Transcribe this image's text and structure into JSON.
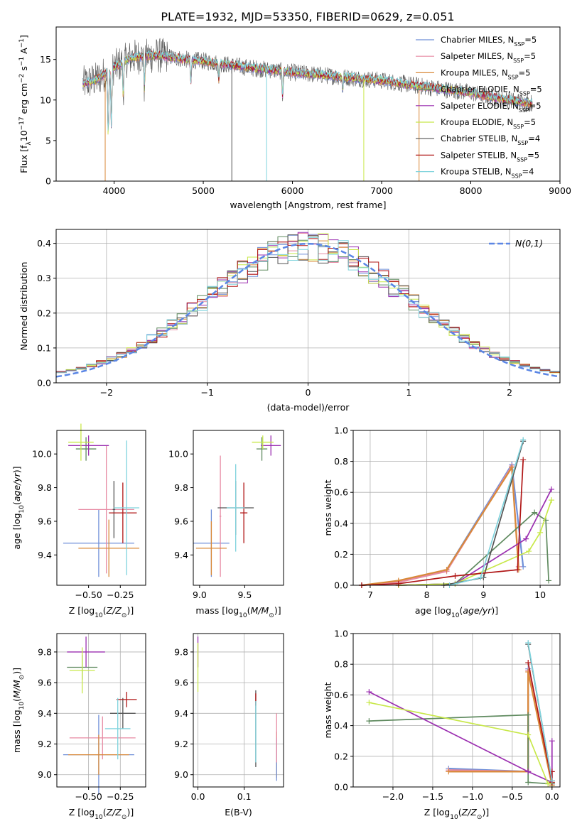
{
  "title": "PLATE=1932, MJD=53350, FIBERID=0629, z=0.051",
  "colors": {
    "Chabrier MILES": "#6f8fd8",
    "Salpeter MILES": "#e78aa3",
    "Kroupa MILES": "#d98a3a",
    "Chabrier ELODIE": "#5f8a5f",
    "Salpeter ELODIE": "#9b2fb0",
    "Kroupa ELODIE": "#c8e84a",
    "Chabrier STELIB": "#555555",
    "Salpeter STELIB": "#b01616",
    "Kroupa STELIB": "#7fd3dd",
    "gaussian": "#5b86e5"
  },
  "chart_data": [
    {
      "type": "line",
      "xlabel": "wavelength [Angstrom, rest frame]",
      "ylabel": "Flux [f_λ 10^-17 erg cm^-2 s^-1 A^-1]",
      "xlim": [
        3350,
        9000
      ],
      "ylim": [
        0,
        19
      ],
      "xticks": [
        "4000",
        "5000",
        "6000",
        "7000",
        "8000",
        "9000"
      ],
      "yticks": [
        "0",
        "5",
        "10",
        "15"
      ],
      "grid": false,
      "legend_position": "top-right",
      "legend": [
        {
          "name": "Chabrier MILES",
          "nssp": "5"
        },
        {
          "name": "Salpeter MILES",
          "nssp": "5"
        },
        {
          "name": "Kroupa MILES",
          "nssp": "5"
        },
        {
          "name": "Chabrier ELODIE",
          "nssp": "5"
        },
        {
          "name": "Salpeter ELODIE",
          "nssp": "5"
        },
        {
          "name": "Kroupa ELODIE",
          "nssp": "5"
        },
        {
          "name": "Chabrier STELIB",
          "nssp": "4"
        },
        {
          "name": "Salpeter STELIB",
          "nssp": "5"
        },
        {
          "name": "Kroupa STELIB",
          "nssp": "4"
        }
      ],
      "continuum_knots": [
        [
          3650,
          12.0
        ],
        [
          3800,
          12.5
        ],
        [
          4000,
          14.0
        ],
        [
          4200,
          15.3
        ],
        [
          4500,
          15.5
        ],
        [
          4800,
          15.0
        ],
        [
          5000,
          14.8
        ],
        [
          5500,
          14.0
        ],
        [
          6000,
          13.4
        ],
        [
          6500,
          12.9
        ],
        [
          7000,
          12.4
        ],
        [
          7500,
          11.6
        ],
        [
          8000,
          10.9
        ],
        [
          8300,
          10.2
        ],
        [
          8600,
          9.7
        ],
        [
          8700,
          9.6
        ]
      ]
    },
    {
      "type": "histogram",
      "xlabel": "(data-model)/error",
      "ylabel": "Normed distribution",
      "xlim": [
        -2.5,
        2.5
      ],
      "ylim": [
        0,
        0.44
      ],
      "xticks": [
        "−2",
        "−1",
        "0",
        "1",
        "2"
      ],
      "yticks": [
        "0.0",
        "0.1",
        "0.2",
        "0.3",
        "0.4"
      ],
      "grid": true,
      "legend_position": "top-right",
      "legend": "N(0,1)",
      "bin_width": 0.1
    },
    {
      "type": "errorbar",
      "xlabel": "Z [log10(Z/Z⊙)]",
      "ylabel": "age [log10(age/yr)]",
      "xlim": [
        -0.75,
        -0.05
      ],
      "ylim": [
        9.22,
        10.14
      ],
      "xticks": [
        "−0.50",
        "−0.25"
      ],
      "yticks": [
        "9.4",
        "9.6",
        "9.8",
        "10.0"
      ],
      "points": [
        {
          "model": "Chabrier MILES",
          "x": -0.42,
          "xerr": 0.28,
          "y": 9.47,
          "yerr": 0.2
        },
        {
          "model": "Salpeter MILES",
          "x": -0.36,
          "xerr": 0.22,
          "y": 9.67,
          "yerr": 0.38
        },
        {
          "model": "Kroupa MILES",
          "x": -0.34,
          "xerr": 0.24,
          "y": 9.44,
          "yerr": 0.17
        },
        {
          "model": "Chabrier ELODIE",
          "x": -0.52,
          "xerr": 0.08,
          "y": 10.03,
          "yerr": 0.07
        },
        {
          "model": "Salpeter ELODIE",
          "x": -0.5,
          "xerr": 0.16,
          "y": 10.05,
          "yerr": 0.06
        },
        {
          "model": "Kroupa ELODIE",
          "x": -0.56,
          "xerr": 0.1,
          "y": 10.07,
          "yerr": 0.11
        },
        {
          "model": "Chabrier STELIB",
          "x": -0.3,
          "xerr": 0.01,
          "y": 9.67,
          "yerr": 0.17
        },
        {
          "model": "Salpeter STELIB",
          "x": -0.23,
          "xerr": 0.11,
          "y": 9.65,
          "yerr": 0.18
        },
        {
          "model": "Kroupa STELIB",
          "x": -0.2,
          "xerr": 0.1,
          "y": 9.68,
          "yerr": 0.4
        }
      ]
    },
    {
      "type": "errorbar",
      "xlabel": "mass [log10(M/M⊙)]",
      "ylabel": "",
      "xlim": [
        8.93,
        9.93
      ],
      "ylim": [
        9.22,
        10.14
      ],
      "xticks": [
        "9.0",
        "9.5"
      ],
      "yticks": [
        "9.4",
        "9.6",
        "9.8",
        "10.0"
      ],
      "points": [
        {
          "model": "Chabrier MILES",
          "x": 9.13,
          "xerr": 0.2,
          "y": 9.47,
          "yerr": 0.2
        },
        {
          "model": "Salpeter MILES",
          "x": 9.23,
          "xerr": 0.01,
          "y": 9.63,
          "yerr": 0.36
        },
        {
          "model": "Kroupa MILES",
          "x": 9.13,
          "xerr": 0.17,
          "y": 9.44,
          "yerr": 0.16
        },
        {
          "model": "Chabrier ELODIE",
          "x": 9.69,
          "xerr": 0.06,
          "y": 10.03,
          "yerr": 0.07
        },
        {
          "model": "Salpeter ELODIE",
          "x": 9.79,
          "xerr": 0.11,
          "y": 10.05,
          "yerr": 0.06
        },
        {
          "model": "Kroupa ELODIE",
          "x": 9.7,
          "xerr": 0.12,
          "y": 10.07,
          "yerr": 0.04
        },
        {
          "model": "Chabrier STELIB",
          "x": 9.4,
          "xerr": 0.2,
          "y": 9.68,
          "yerr": 0.16
        },
        {
          "model": "Salpeter STELIB",
          "x": 9.49,
          "xerr": 0.04,
          "y": 9.65,
          "yerr": 0.18
        },
        {
          "model": "Kroupa STELIB",
          "x": 9.4,
          "xerr": 0.1,
          "y": 9.68,
          "yerr": 0.26
        }
      ]
    },
    {
      "type": "line",
      "xlabel": "age [log10(age/yr)]",
      "ylabel": "mass weight",
      "xlim": [
        6.7,
        10.35
      ],
      "ylim": [
        0,
        1.0
      ],
      "xticks": [
        "7",
        "8",
        "9",
        "10"
      ],
      "yticks": [
        "0.0",
        "0.2",
        "0.4",
        "0.6",
        "0.8",
        "1.0"
      ],
      "grid": true,
      "series": [
        {
          "model": "Chabrier MILES",
          "x": [
            6.85,
            7.5,
            8.35,
            9.5,
            9.7
          ],
          "y": [
            0.0,
            0.02,
            0.1,
            0.78,
            0.12
          ]
        },
        {
          "model": "Salpeter MILES",
          "x": [
            6.85,
            7.5,
            8.35,
            9.5,
            9.62
          ],
          "y": [
            0.0,
            0.02,
            0.09,
            0.77,
            0.12
          ]
        },
        {
          "model": "Kroupa MILES",
          "x": [
            6.85,
            7.5,
            8.35,
            9.5,
            9.62
          ],
          "y": [
            0.0,
            0.03,
            0.1,
            0.76,
            0.1
          ]
        },
        {
          "model": "Chabrier ELODIE",
          "x": [
            7.5,
            8.5,
            9.9,
            10.1,
            10.15
          ],
          "y": [
            0.0,
            0.01,
            0.47,
            0.42,
            0.03
          ]
        },
        {
          "model": "Salpeter ELODIE",
          "x": [
            7.5,
            8.5,
            9.75,
            10.2
          ],
          "y": [
            0.0,
            0.01,
            0.3,
            0.62
          ]
        },
        {
          "model": "Kroupa ELODIE",
          "x": [
            7.5,
            8.5,
            9.8,
            10.0,
            10.2
          ],
          "y": [
            0.0,
            0.01,
            0.22,
            0.34,
            0.55
          ]
        },
        {
          "model": "Chabrier STELIB",
          "x": [
            8.3,
            9.0,
            9.7
          ],
          "y": [
            0.0,
            0.05,
            0.93
          ]
        },
        {
          "model": "Salpeter STELIB",
          "x": [
            6.85,
            7.5,
            8.5,
            9.6,
            9.7
          ],
          "y": [
            0.0,
            0.01,
            0.06,
            0.1,
            0.81
          ]
        },
        {
          "model": "Kroupa STELIB",
          "x": [
            8.4,
            8.95,
            9.7
          ],
          "y": [
            0.0,
            0.05,
            0.94
          ]
        }
      ]
    },
    {
      "type": "errorbar",
      "xlabel": "Z [log10(Z/Z⊙)]",
      "ylabel": "mass [log10(M/M⊙)]",
      "xlim": [
        -0.75,
        -0.05
      ],
      "ylim": [
        8.92,
        9.92
      ],
      "xticks": [
        "−0.50",
        "−0.25"
      ],
      "yticks": [
        "9.0",
        "9.2",
        "9.4",
        "9.6",
        "9.8"
      ],
      "points": [
        {
          "model": "Chabrier MILES",
          "x": -0.42,
          "xerr": 0.28,
          "y": 9.13,
          "yerr": 0.26
        },
        {
          "model": "Salpeter MILES",
          "x": -0.39,
          "xerr": 0.26,
          "y": 9.24,
          "yerr": 0.14
        },
        {
          "model": "Kroupa MILES",
          "x": -0.42,
          "xerr": 0.24,
          "y": 9.13,
          "yerr": 0.13
        },
        {
          "model": "Chabrier ELODIE",
          "x": -0.55,
          "xerr": 0.12,
          "y": 9.7,
          "yerr": 0.08
        },
        {
          "model": "Salpeter ELODIE",
          "x": -0.52,
          "xerr": 0.15,
          "y": 9.8,
          "yerr": 0.1
        },
        {
          "model": "Kroupa ELODIE",
          "x": -0.55,
          "xerr": 0.1,
          "y": 9.68,
          "yerr": 0.15
        },
        {
          "model": "Chabrier STELIB",
          "x": -0.23,
          "xerr": 0.1,
          "y": 9.4,
          "yerr": 0.1
        },
        {
          "model": "Salpeter STELIB",
          "x": -0.2,
          "xerr": 0.08,
          "y": 9.49,
          "yerr": 0.05
        },
        {
          "model": "Kroupa STELIB",
          "x": -0.27,
          "xerr": 0.1,
          "y": 9.3,
          "yerr": 0.2
        }
      ]
    },
    {
      "type": "errorbar",
      "xlabel": "E(B-V)",
      "ylabel": "",
      "xlim": [
        -0.01,
        0.185
      ],
      "ylim": [
        8.92,
        9.92
      ],
      "xticks": [
        "0.0",
        "0.1"
      ],
      "yticks": [
        "9.0",
        "9.2",
        "9.4",
        "9.6",
        "9.8"
      ],
      "points": [
        {
          "model": "Kroupa MILES",
          "x": 0.17,
          "xerr": 0.0,
          "y": 9.13,
          "yerr": 0.15
        },
        {
          "model": "Chabrier MILES",
          "x": 0.17,
          "xerr": 0.0,
          "y": 9.1,
          "yerr": 0.14
        },
        {
          "model": "Salpeter MILES",
          "x": 0.17,
          "xerr": 0.0,
          "y": 9.24,
          "yerr": 0.16
        },
        {
          "model": "Salpeter ELODIE",
          "x": 0.0,
          "xerr": 0.0,
          "y": 9.8,
          "yerr": 0.1
        },
        {
          "model": "Kroupa ELODIE",
          "x": 0.0,
          "xerr": 0.0,
          "y": 9.7,
          "yerr": 0.16
        },
        {
          "model": "Chabrier STELIB",
          "x": 0.125,
          "xerr": 0.0,
          "y": 9.3,
          "yerr": 0.25
        },
        {
          "model": "Salpeter STELIB",
          "x": 0.125,
          "xerr": 0.0,
          "y": 9.49,
          "yerr": 0.04
        },
        {
          "model": "Kroupa STELIB",
          "x": 0.125,
          "xerr": 0.0,
          "y": 9.28,
          "yerr": 0.2
        }
      ]
    },
    {
      "type": "line",
      "xlabel": "Z [log10(Z/Z⊙)]",
      "ylabel": "mass weight",
      "xlim": [
        -2.5,
        0.1
      ],
      "ylim": [
        0,
        1.0
      ],
      "xticks": [
        "−2.0",
        "−1.5",
        "−1.0",
        "−0.5",
        "0.0"
      ],
      "yticks": [
        "0.0",
        "0.2",
        "0.4",
        "0.6",
        "0.8",
        "1.0"
      ],
      "grid": true,
      "series": [
        {
          "model": "Chabrier MILES",
          "x": [
            -1.3,
            -0.3,
            -0.3,
            0.0
          ],
          "y": [
            0.12,
            0.1,
            0.77,
            0.02
          ]
        },
        {
          "model": "Salpeter MILES",
          "x": [
            -1.3,
            -0.3,
            -0.3,
            0.0
          ],
          "y": [
            0.11,
            0.1,
            0.76,
            0.02
          ]
        },
        {
          "model": "Kroupa MILES",
          "x": [
            -1.3,
            -0.3,
            -0.3,
            0.0
          ],
          "y": [
            0.1,
            0.1,
            0.75,
            0.01
          ]
        },
        {
          "model": "Chabrier ELODIE",
          "x": [
            -2.3,
            -0.3,
            -0.3,
            0.0
          ],
          "y": [
            0.43,
            0.47,
            0.03,
            0.02
          ]
        },
        {
          "model": "Salpeter ELODIE",
          "x": [
            -2.3,
            -0.3,
            0.0,
            0.0
          ],
          "y": [
            0.62,
            0.1,
            0.03,
            0.3
          ]
        },
        {
          "model": "Kroupa ELODIE",
          "x": [
            -2.3,
            -0.3,
            -0.05,
            0.0
          ],
          "y": [
            0.55,
            0.34,
            0.02,
            0.03
          ]
        },
        {
          "model": "Chabrier STELIB",
          "x": [
            -0.3,
            0.0
          ],
          "y": [
            0.93,
            0.04
          ]
        },
        {
          "model": "Salpeter STELIB",
          "x": [
            -0.3,
            0.0,
            0.0
          ],
          "y": [
            0.81,
            0.03,
            0.1
          ]
        },
        {
          "model": "Kroupa STELIB",
          "x": [
            -0.3,
            0.0
          ],
          "y": [
            0.94,
            0.04
          ]
        }
      ]
    }
  ]
}
